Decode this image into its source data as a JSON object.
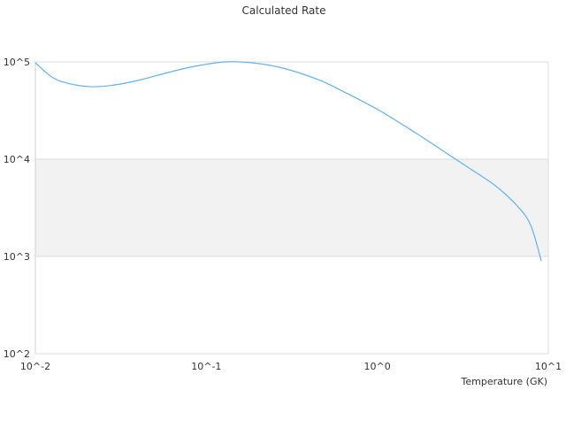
{
  "chart_data": {
    "type": "line",
    "title": "Calculated Rate",
    "xlabel": "Temperature (GK)",
    "ylabel": "",
    "xscale": "log",
    "yscale": "log",
    "xlim": [
      0.01,
      10
    ],
    "ylim": [
      100,
      100000
    ],
    "x_ticks": [
      "10^-2",
      "10^-1",
      "10^0",
      "10^1"
    ],
    "y_ticks": [
      "10^2",
      "10^3",
      "10^4",
      "10^5"
    ],
    "grid": true,
    "band_shading": "alternate decades shaded",
    "line_color": "#64b0f4",
    "band_color": "#f2f2f2",
    "series": [
      {
        "x": [
          0.01,
          0.0127,
          0.0161,
          0.0212,
          0.0292,
          0.0417,
          0.0597,
          0.0854,
          0.129,
          0.185,
          0.28,
          0.45,
          0.64,
          1.03,
          1.67,
          2.4,
          3.44,
          4.9,
          6.6,
          7.9,
          9.1
        ],
        "y": [
          97900,
          68600,
          59300,
          55600,
          58000,
          65800,
          77800,
          90100,
          100000,
          97900,
          86400,
          65800,
          49100,
          31600,
          18700,
          12300,
          8110,
          5340,
          3290,
          2080,
          900
        ]
      }
    ]
  }
}
